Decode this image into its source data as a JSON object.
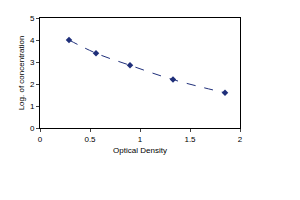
{
  "chart_data": {
    "type": "line",
    "xlabel": "Optical Density",
    "ylabel": "Log. of concentration",
    "x": [
      0.29,
      0.56,
      0.9,
      1.33,
      1.85
    ],
    "values": [
      4.0,
      3.4,
      2.85,
      2.2,
      1.6
    ],
    "color": "#1f2f7a",
    "marker": "diamond",
    "line_style": "dashed",
    "xlim": [
      0,
      2
    ],
    "xticks": [
      0,
      0.5,
      1,
      1.5,
      2
    ],
    "ylim": [
      0,
      5
    ],
    "yticks": [
      0,
      1,
      2,
      3,
      4,
      5
    ],
    "grid": false
  }
}
